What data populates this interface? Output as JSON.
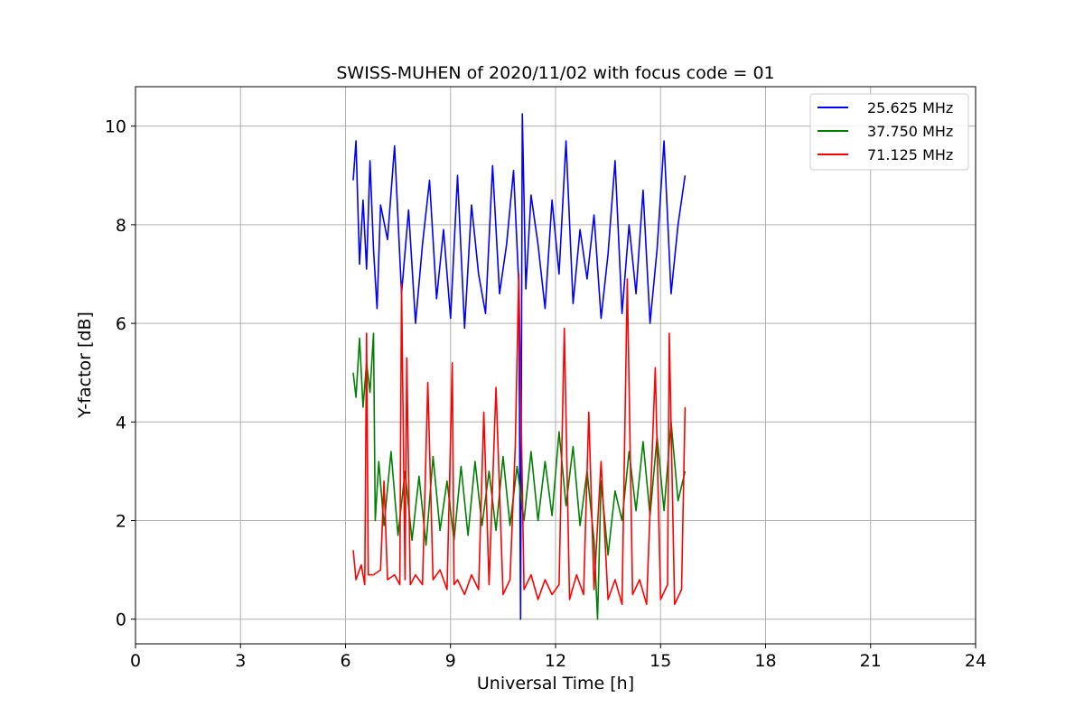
{
  "chart_data": {
    "type": "line",
    "title": "SWISS-MUHEN of 2020/11/02 with focus code = 01",
    "xlabel": "Universal Time [h]",
    "ylabel": "Y-factor [dB]",
    "xlim": [
      0,
      24
    ],
    "ylim": [
      -0.5,
      10.8
    ],
    "xticks": [
      0,
      3,
      6,
      9,
      12,
      15,
      18,
      21,
      24
    ],
    "yticks": [
      0,
      2,
      4,
      6,
      8,
      10
    ],
    "xtick_labels": [
      "0",
      "3",
      "6",
      "9",
      "12",
      "15",
      "18",
      "21",
      "24"
    ],
    "ytick_labels": [
      "0",
      "2",
      "4",
      "6",
      "8",
      "10"
    ],
    "grid": true,
    "legend_position": "top-right",
    "series": [
      {
        "name": "25.625 MHz",
        "color": "#0000ff",
        "x": [
          6.22,
          6.3,
          6.4,
          6.5,
          6.6,
          6.7,
          6.8,
          6.9,
          7.0,
          7.2,
          7.4,
          7.6,
          7.8,
          8.0,
          8.2,
          8.4,
          8.6,
          8.8,
          9.0,
          9.2,
          9.4,
          9.6,
          9.8,
          10.0,
          10.2,
          10.4,
          10.6,
          10.8,
          10.95,
          11.0,
          11.05,
          11.15,
          11.3,
          11.5,
          11.7,
          11.9,
          12.1,
          12.3,
          12.5,
          12.7,
          12.9,
          13.1,
          13.3,
          13.5,
          13.7,
          13.9,
          14.1,
          14.3,
          14.5,
          14.7,
          14.9,
          15.1,
          15.3,
          15.5,
          15.7
        ],
        "y": [
          8.9,
          9.7,
          7.2,
          8.5,
          7.1,
          9.3,
          7.5,
          6.3,
          8.4,
          7.7,
          9.6,
          6.6,
          8.3,
          6.0,
          7.6,
          8.9,
          6.5,
          7.9,
          6.1,
          9.0,
          5.9,
          8.4,
          7.0,
          6.2,
          9.2,
          6.6,
          7.6,
          9.1,
          6.8,
          0.0,
          10.25,
          6.7,
          8.6,
          7.6,
          6.3,
          8.5,
          7.0,
          9.7,
          6.4,
          7.9,
          6.9,
          8.2,
          6.1,
          7.4,
          9.3,
          6.2,
          8.0,
          6.6,
          8.7,
          6.0,
          7.5,
          9.7,
          6.6,
          8.0,
          9.0
        ]
      },
      {
        "name": "37.750 MHz",
        "color": "#008000",
        "x": [
          6.22,
          6.3,
          6.4,
          6.5,
          6.6,
          6.7,
          6.8,
          6.85,
          6.95,
          7.1,
          7.3,
          7.5,
          7.7,
          7.9,
          8.1,
          8.3,
          8.5,
          8.7,
          8.9,
          9.1,
          9.3,
          9.5,
          9.7,
          9.9,
          10.1,
          10.3,
          10.5,
          10.7,
          10.9,
          11.1,
          11.3,
          11.5,
          11.7,
          11.9,
          12.1,
          12.3,
          12.5,
          12.7,
          12.9,
          13.1,
          13.2,
          13.3,
          13.5,
          13.7,
          13.9,
          14.1,
          14.3,
          14.5,
          14.7,
          14.9,
          15.1,
          15.3,
          15.5,
          15.7
        ],
        "y": [
          5.0,
          4.5,
          5.7,
          4.3,
          5.2,
          4.6,
          5.8,
          2.0,
          3.2,
          1.9,
          3.4,
          1.7,
          3.0,
          1.6,
          2.9,
          1.5,
          3.3,
          1.8,
          2.8,
          1.6,
          3.1,
          1.7,
          3.2,
          1.9,
          3.0,
          1.8,
          3.3,
          1.9,
          3.1,
          2.0,
          3.4,
          2.0,
          3.2,
          2.1,
          3.8,
          2.3,
          3.5,
          1.9,
          3.0,
          1.6,
          0.0,
          2.8,
          1.3,
          2.6,
          2.0,
          3.4,
          2.2,
          3.6,
          2.1,
          3.7,
          2.2,
          4.0,
          2.4,
          3.0
        ]
      },
      {
        "name": "71.125 MHz",
        "color": "#ff0000",
        "x": [
          6.22,
          6.3,
          6.45,
          6.55,
          6.6,
          6.65,
          6.8,
          7.0,
          7.1,
          7.2,
          7.4,
          7.55,
          7.6,
          7.7,
          7.75,
          7.85,
          8.0,
          8.2,
          8.35,
          8.5,
          8.7,
          8.9,
          9.05,
          9.1,
          9.2,
          9.4,
          9.6,
          9.8,
          9.95,
          10.1,
          10.3,
          10.5,
          10.7,
          10.85,
          10.95,
          11.1,
          11.3,
          11.5,
          11.7,
          11.9,
          12.1,
          12.25,
          12.4,
          12.6,
          12.8,
          12.95,
          13.1,
          13.3,
          13.5,
          13.7,
          13.9,
          14.05,
          14.2,
          14.4,
          14.6,
          14.85,
          15.0,
          15.2,
          15.25,
          15.4,
          15.6,
          15.7
        ],
        "y": [
          1.4,
          0.8,
          1.1,
          0.7,
          5.8,
          0.9,
          0.9,
          1.0,
          2.8,
          0.8,
          0.9,
          0.7,
          6.8,
          0.8,
          5.3,
          0.7,
          0.9,
          0.7,
          4.8,
          0.8,
          1.0,
          0.6,
          5.2,
          0.7,
          0.8,
          0.5,
          0.9,
          0.6,
          4.2,
          0.7,
          4.7,
          0.5,
          0.8,
          3.5,
          7.0,
          0.6,
          0.9,
          0.4,
          0.8,
          0.5,
          0.7,
          5.9,
          0.4,
          0.9,
          0.5,
          4.2,
          0.6,
          3.2,
          0.4,
          0.8,
          0.3,
          6.9,
          0.5,
          0.8,
          0.3,
          5.1,
          0.4,
          0.7,
          5.8,
          0.3,
          0.6,
          4.3
        ]
      }
    ]
  }
}
